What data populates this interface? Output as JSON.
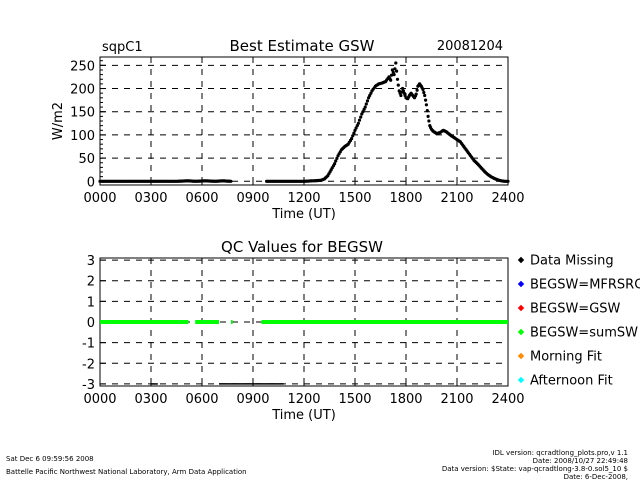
{
  "header": {
    "site": "sqpC1",
    "date": "20081204"
  },
  "chart_data": [
    {
      "type": "scatter",
      "title": "Best Estimate GSW",
      "xlabel": "Time (UT)",
      "ylabel": "W/m2",
      "xlim": [
        0,
        2400
      ],
      "ylim": [
        -8,
        268
      ],
      "x_ticks": [
        "0000",
        "0300",
        "0600",
        "0900",
        "1200",
        "1500",
        "1800",
        "2100",
        "2400"
      ],
      "y_ticks": [
        0,
        50,
        100,
        150,
        200,
        250
      ],
      "grid": true,
      "series": [
        {
          "color": "#000000",
          "x": [
            0,
            100,
            200,
            300,
            400,
            450,
            520,
            560,
            620,
            680,
            720,
            770,
            980,
            1050,
            1100,
            1150,
            1200,
            1250,
            1300,
            1320,
            1340,
            1360,
            1380,
            1400,
            1420,
            1440,
            1460,
            1480,
            1500,
            1520,
            1540,
            1560,
            1580,
            1600,
            1620,
            1640,
            1660,
            1680,
            1700,
            1710,
            1720,
            1730,
            1740,
            1750,
            1760,
            1770,
            1780,
            1790,
            1800,
            1810,
            1820,
            1830,
            1840,
            1850,
            1860,
            1870,
            1880,
            1890,
            1900,
            1910,
            1920,
            1930,
            1940,
            1950,
            1960,
            1980,
            2000,
            2020,
            2040,
            2060,
            2080,
            2100,
            2120,
            2140,
            2160,
            2180,
            2200,
            2220,
            2240,
            2260,
            2280,
            2300,
            2320,
            2340,
            2360,
            2380,
            2400
          ],
          "y": [
            0,
            0,
            0,
            0,
            0,
            0,
            1,
            0,
            1,
            0,
            1,
            0,
            0,
            0,
            0,
            0,
            0,
            1,
            2,
            5,
            12,
            25,
            38,
            55,
            68,
            75,
            80,
            92,
            110,
            125,
            145,
            160,
            180,
            195,
            205,
            210,
            212,
            215,
            225,
            218,
            240,
            230,
            255,
            220,
            195,
            185,
            200,
            190,
            180,
            178,
            185,
            190,
            185,
            180,
            188,
            205,
            210,
            205,
            198,
            185,
            165,
            140,
            120,
            112,
            108,
            103,
            105,
            110,
            106,
            100,
            95,
            90,
            85,
            75,
            65,
            55,
            45,
            38,
            30,
            22,
            15,
            10,
            6,
            3,
            1,
            0,
            0
          ]
        }
      ]
    },
    {
      "type": "scatter",
      "title": "QC Values for BEGSW",
      "xlabel": "Time (UT)",
      "ylabel": "",
      "xlim": [
        0,
        2400
      ],
      "ylim": [
        -3.1,
        3.1
      ],
      "x_ticks": [
        "0000",
        "0300",
        "0600",
        "0900",
        "1200",
        "1500",
        "1800",
        "2100",
        "2400"
      ],
      "y_ticks": [
        3,
        2,
        1,
        0,
        -1,
        -2,
        -3
      ],
      "grid": true,
      "legend": {
        "placement": "right",
        "entries": [
          {
            "label": "Data Missing",
            "color": "#000000"
          },
          {
            "label": "BEGSW=MFRSRG",
            "color": "#0000ff"
          },
          {
            "label": "BEGSW=GSW",
            "color": "#ff0000"
          },
          {
            "label": "BEGSW=sumSW",
            "color": "#00ff00"
          },
          {
            "label": "Morning Fit",
            "color": "#ff8c00"
          },
          {
            "label": "Afternoon Fit",
            "color": "#00ffff"
          }
        ]
      },
      "series": [
        {
          "name": "BEGSW=sumSW",
          "color": "#00ff00",
          "segments": [
            {
              "x0": 0,
              "x1": 520,
              "y": 0
            },
            {
              "x0": 560,
              "x1": 700,
              "y": 0
            },
            {
              "x0": 770,
              "x1": 780,
              "y": 0
            },
            {
              "x0": 950,
              "x1": 2400,
              "y": 0
            }
          ]
        },
        {
          "name": "Data Missing",
          "color": "#000000",
          "segments": [
            {
              "x0": 300,
              "x1": 340,
              "y": -3
            },
            {
              "x0": 700,
              "x1": 1080,
              "y": -3
            }
          ]
        }
      ]
    }
  ],
  "footer": {
    "timestamp": "Sat Dec  6 09:59:56 2008",
    "org": "Battelle Pacific Northwest National Laboratory, Arm Data Application",
    "idl_version": "IDL version: qcradtlong_plots.pro,v 1.1",
    "idl_date": "Date: 2008/10/27 22:49:48",
    "data_version": "Data version: $State: vap-qcradtlong-3.8-0.sol5_10 $",
    "data_date": "Date: 6-Dec-2008,"
  }
}
